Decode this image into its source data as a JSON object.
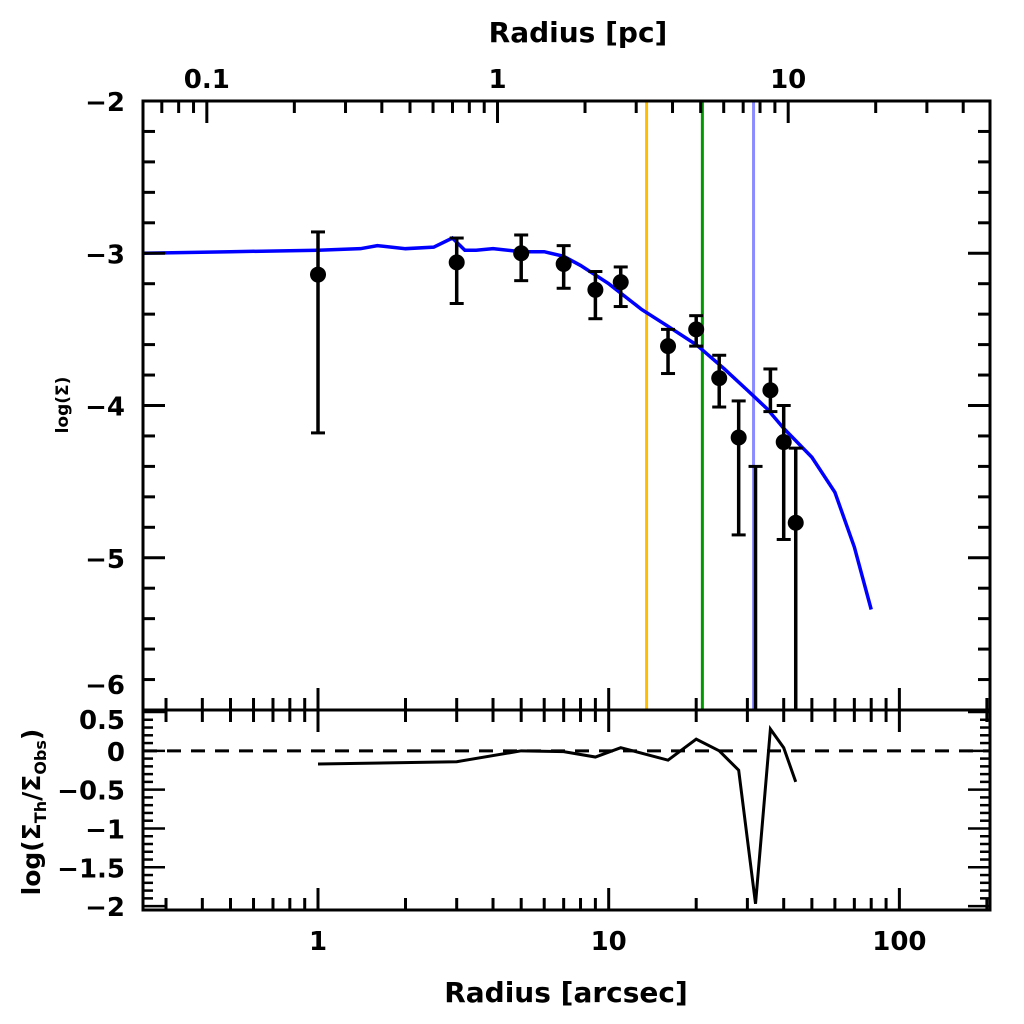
{
  "chart_data": [
    {
      "type": "scatter",
      "panel": "main",
      "xlabel": "Radius [arcsec]",
      "x2label": "Radius [pc]",
      "ylabel": "log(Σ)",
      "xscale": "log",
      "xlim": [
        0.25,
        205
      ],
      "ylim": [
        -6,
        -2
      ],
      "xticks": [
        "1",
        "10",
        "100"
      ],
      "x2ticks": [
        "0.1",
        "1",
        "10"
      ],
      "x2tick_values": [
        0.1,
        1,
        10
      ],
      "yticks": [
        "-2",
        "-3",
        "-4",
        "-5",
        "-6"
      ],
      "grid": false,
      "observed": {
        "x": [
          1,
          3,
          5,
          7,
          9,
          11,
          16,
          20,
          24,
          28,
          32,
          36,
          40,
          44
        ],
        "y": [
          -3.14,
          -3.06,
          -3.0,
          -3.07,
          -3.24,
          -3.19,
          -3.61,
          -3.5,
          -3.82,
          -4.21,
          null,
          -3.9,
          -4.24,
          -4.77
        ],
        "err_high": [
          -2.86,
          -2.9,
          -2.88,
          -2.95,
          -3.12,
          -3.09,
          -3.5,
          -3.41,
          -3.67,
          -3.97,
          -4.4,
          -3.76,
          -4.0,
          -4.28
        ],
        "err_low": [
          -4.18,
          -3.33,
          -3.18,
          -3.23,
          -3.43,
          -3.35,
          -3.79,
          -3.61,
          -4.01,
          -4.85,
          -6.0,
          -4.04,
          -4.88,
          -6.0
        ],
        "color": "#000000"
      },
      "model": {
        "x": [
          0.25,
          0.5,
          1,
          1.4,
          1.6,
          2,
          2.5,
          2.9,
          3.2,
          3.5,
          4,
          5,
          6,
          7,
          8,
          10,
          13,
          16,
          20,
          25,
          30,
          35,
          40,
          50,
          60,
          70,
          80
        ],
        "y": [
          -3.0,
          -2.99,
          -2.98,
          -2.97,
          -2.95,
          -2.97,
          -2.96,
          -2.9,
          -2.98,
          -2.98,
          -2.97,
          -2.99,
          -2.99,
          -3.02,
          -3.08,
          -3.2,
          -3.37,
          -3.48,
          -3.6,
          -3.76,
          -3.9,
          -4.02,
          -4.15,
          -4.34,
          -4.57,
          -4.93,
          -5.34
        ],
        "color": "#0000ff"
      },
      "vlines": [
        {
          "x": 13.5,
          "color": "#ffbf00"
        },
        {
          "x": 21.0,
          "color": "#009900"
        },
        {
          "x": 31.5,
          "color": "#8c8cff"
        }
      ]
    },
    {
      "type": "line",
      "panel": "residual",
      "xlabel": "Radius [arcsec]",
      "ylabel": "log(ΣTh/ΣObs)",
      "ylabel_main": "log(Σ",
      "ylabel_sub1": "Th",
      "ylabel_mid": "/Σ",
      "ylabel_sub2": "Obs",
      "ylabel_end": ")",
      "xscale": "log",
      "xlim": [
        0.25,
        205
      ],
      "ylim": [
        -2.05,
        0.5
      ],
      "xticks": [
        "1",
        "10",
        "100"
      ],
      "yticks": [
        "0.5",
        "0",
        "-0.5",
        "-1",
        "-1.5",
        "-2"
      ],
      "reference_line": {
        "y": 0,
        "style": "dashed"
      },
      "x": [
        1,
        3,
        5,
        7,
        9,
        11,
        16,
        20,
        24,
        28,
        32,
        36,
        40,
        44
      ],
      "y": [
        -0.17,
        -0.14,
        0.0,
        -0.01,
        -0.08,
        0.04,
        -0.12,
        0.15,
        0.0,
        -0.25,
        -1.97,
        0.28,
        0.04,
        -0.4
      ],
      "color": "#000000"
    }
  ]
}
